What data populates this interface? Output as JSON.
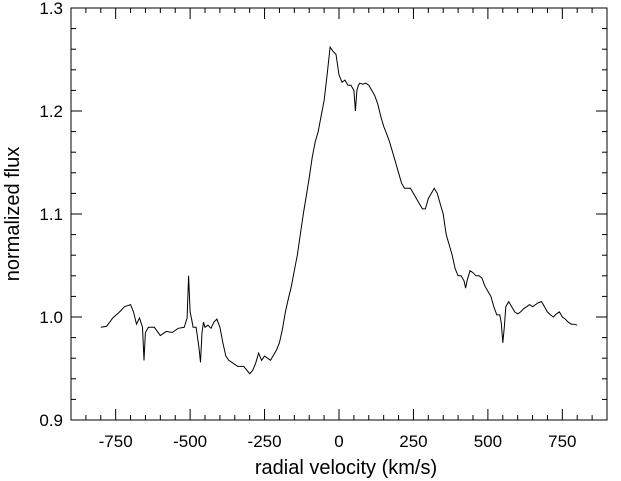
{
  "chart_data": {
    "type": "line",
    "title": "",
    "xlabel": "radial velocity (km/s)",
    "ylabel": "normalized flux",
    "xlim": [
      -900,
      900
    ],
    "ylim": [
      0.9,
      1.3
    ],
    "xticks": [
      -750,
      -500,
      -250,
      0,
      250,
      500,
      750
    ],
    "xtick_labels": [
      "-750",
      "-500",
      "-250",
      "0",
      "250",
      "500",
      "750"
    ],
    "yticks": [
      0.9,
      1.0,
      1.1,
      1.2,
      1.3
    ],
    "ytick_labels": [
      "0.9",
      "1.0",
      "1.1",
      "1.2",
      "1.3"
    ],
    "grid": false,
    "series": [
      {
        "color": "#000000",
        "x": [
          -800,
          -780,
          -760,
          -740,
          -720,
          -700,
          -690,
          -680,
          -670,
          -660,
          -655,
          -650,
          -640,
          -620,
          -600,
          -580,
          -560,
          -540,
          -520,
          -510,
          -505,
          -500,
          -495,
          -490,
          -480,
          -470,
          -465,
          -460,
          -455,
          -450,
          -440,
          -430,
          -420,
          -410,
          -400,
          -390,
          -380,
          -370,
          -360,
          -340,
          -320,
          -300,
          -290,
          -280,
          -270,
          -260,
          -250,
          -240,
          -230,
          -220,
          -210,
          -200,
          -190,
          -180,
          -170,
          -160,
          -150,
          -140,
          -130,
          -120,
          -110,
          -100,
          -90,
          -80,
          -70,
          -60,
          -50,
          -40,
          -30,
          -20,
          -10,
          0,
          10,
          20,
          30,
          40,
          50,
          55,
          60,
          65,
          70,
          80,
          90,
          100,
          110,
          120,
          130,
          140,
          150,
          160,
          170,
          180,
          190,
          200,
          210,
          220,
          230,
          240,
          250,
          260,
          270,
          280,
          290,
          300,
          310,
          320,
          330,
          340,
          350,
          360,
          370,
          380,
          390,
          400,
          410,
          420,
          425,
          430,
          440,
          450,
          460,
          470,
          480,
          490,
          500,
          510,
          520,
          530,
          540,
          545,
          550,
          555,
          560,
          570,
          580,
          590,
          600,
          610,
          620,
          630,
          640,
          650,
          660,
          670,
          680,
          690,
          700,
          710,
          720,
          730,
          740,
          750,
          760,
          770,
          780,
          790,
          800
        ],
        "y": [
          0.99,
          0.991,
          0.999,
          1.004,
          1.01,
          1.012,
          1.005,
          0.993,
          0.999,
          0.99,
          0.958,
          0.985,
          0.99,
          0.99,
          0.982,
          0.986,
          0.985,
          0.989,
          0.99,
          0.999,
          1.04,
          1.005,
          0.998,
          0.99,
          0.99,
          0.97,
          0.956,
          0.985,
          0.995,
          0.99,
          0.992,
          0.989,
          0.995,
          0.998,
          0.99,
          0.975,
          0.962,
          0.958,
          0.956,
          0.952,
          0.952,
          0.945,
          0.948,
          0.955,
          0.965,
          0.958,
          0.962,
          0.96,
          0.958,
          0.963,
          0.968,
          0.975,
          0.988,
          1.005,
          1.018,
          1.03,
          1.045,
          1.06,
          1.08,
          1.1,
          1.117,
          1.135,
          1.155,
          1.17,
          1.18,
          1.195,
          1.21,
          1.235,
          1.262,
          1.258,
          1.255,
          1.235,
          1.228,
          1.23,
          1.225,
          1.225,
          1.22,
          1.2,
          1.22,
          1.225,
          1.227,
          1.226,
          1.227,
          1.225,
          1.22,
          1.215,
          1.207,
          1.195,
          1.185,
          1.178,
          1.17,
          1.16,
          1.15,
          1.14,
          1.13,
          1.125,
          1.125,
          1.125,
          1.12,
          1.115,
          1.11,
          1.105,
          1.105,
          1.115,
          1.12,
          1.125,
          1.12,
          1.11,
          1.1,
          1.08,
          1.07,
          1.06,
          1.047,
          1.04,
          1.04,
          1.035,
          1.028,
          1.035,
          1.045,
          1.043,
          1.04,
          1.04,
          1.038,
          1.03,
          1.025,
          1.02,
          1.01,
          1.002,
          1.002,
          0.994,
          0.975,
          0.99,
          1.01,
          1.015,
          1.01,
          1.005,
          1.003,
          1.005,
          1.008,
          1.01,
          1.012,
          1.01,
          1.012,
          1.014,
          1.015,
          1.01,
          1.005,
          1.002,
          1.0,
          1.003,
          1.005,
          1.0,
          0.998,
          0.995,
          0.993,
          0.993,
          0.992
        ]
      }
    ]
  }
}
